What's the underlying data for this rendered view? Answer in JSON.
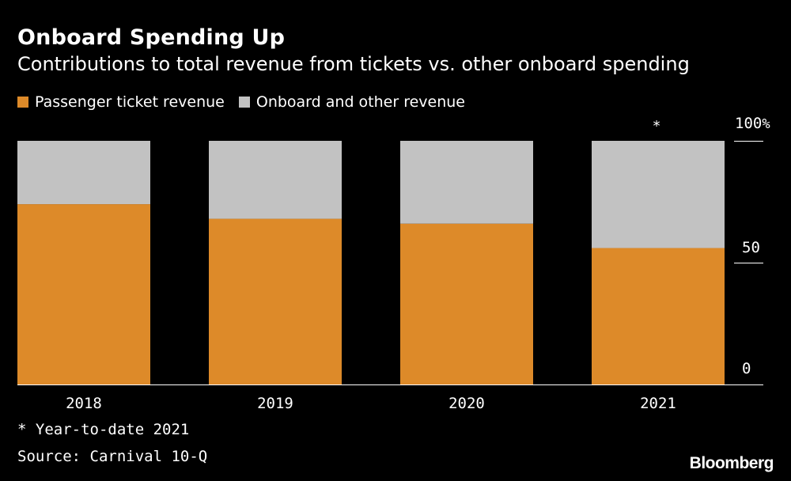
{
  "colors": {
    "background": "#000000",
    "ticket": "#DD8A29",
    "onboard": "#C2C2C2",
    "text": "#FFFFFF"
  },
  "chart_data": {
    "type": "bar",
    "stacked": true,
    "title": "Onboard Spending Up",
    "subtitle": "Contributions to total revenue from tickets vs. other onboard spending",
    "categories": [
      "2018",
      "2019",
      "2020",
      "2021"
    ],
    "category_markers": [
      "",
      "",
      "",
      "*"
    ],
    "series": [
      {
        "name": "Passenger ticket revenue",
        "color": "#DD8A29",
        "values": [
          74,
          68,
          66,
          56
        ]
      },
      {
        "name": "Onboard and other revenue",
        "color": "#C2C2C2",
        "values": [
          26,
          32,
          34,
          44
        ]
      }
    ],
    "ylim": [
      0,
      100
    ],
    "yticks": [
      0,
      50,
      100
    ],
    "ytick_labels": [
      "0",
      "50",
      "100"
    ],
    "yunit": "%",
    "axis_side": "right",
    "xlabel": "",
    "ylabel": "",
    "legend": "top-left",
    "grid": false
  },
  "footnote": "* Year-to-date 2021",
  "source": "Source: Carnival 10-Q",
  "brand": "Bloomberg"
}
